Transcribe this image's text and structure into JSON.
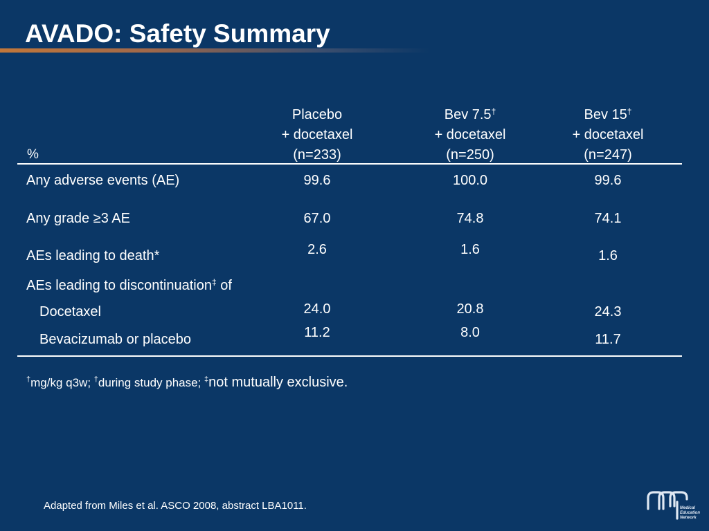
{
  "title": "AVADO: Safety Summary",
  "table": {
    "unit_label": "%",
    "columns": [
      {
        "line1": "Placebo",
        "sup": "",
        "line2": "+ docetaxel",
        "line3": "(n=233)"
      },
      {
        "line1": "Bev 7.5",
        "sup": "†",
        "line2": "+ docetaxel",
        "line3": "(n=250)"
      },
      {
        "line1": "Bev 15",
        "sup": "†",
        "line2": "+ docetaxel",
        "line3": "(n=247)"
      }
    ],
    "rows": [
      {
        "label": "Any  adverse events (AE)",
        "values": [
          "99.6",
          "100.0",
          "99.6"
        ]
      },
      {
        "label": "Any grade ≥3 AE",
        "values": [
          "67.0",
          "74.8",
          "74.1"
        ]
      },
      {
        "label": "AEs leading to death*",
        "values": [
          "2.6",
          "1.6",
          "1.6"
        ]
      },
      {
        "label": "AEs leading to discontinuation",
        "sup": "‡",
        "label_suffix": " of"
      },
      {
        "label": "Docetaxel",
        "values": [
          "24.0",
          "20.8",
          "24.3"
        ]
      },
      {
        "label": "Bevacizumab or placebo",
        "values": [
          "11.2",
          "8.0",
          "11.7"
        ]
      }
    ]
  },
  "footnote": {
    "sym1": "†",
    "text1": "mg/kg q3w; ",
    "sym2": "†",
    "text2": "during study phase; ",
    "sym3": "‡",
    "text3": "not mutually exclusive."
  },
  "source": "Adapted from Miles et al. ASCO 2008, abstract LBA1011.",
  "logo": {
    "icon": "medical-education-network-logo",
    "line1": "Medical",
    "line2": "Education",
    "line3": "Network"
  }
}
